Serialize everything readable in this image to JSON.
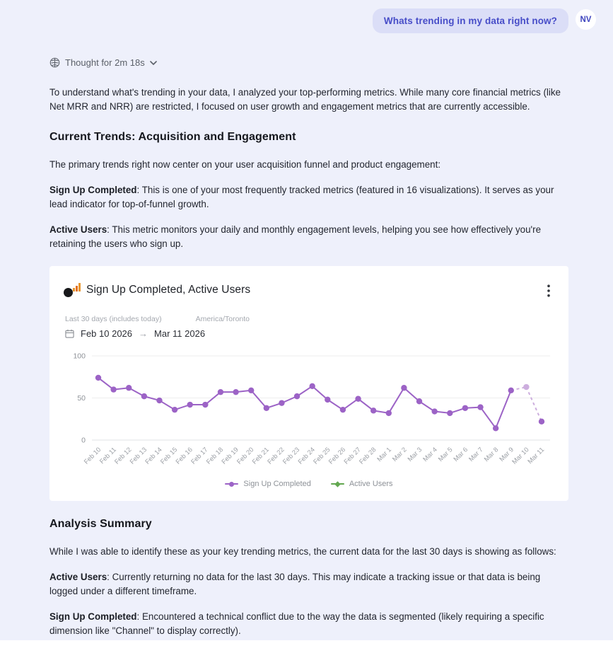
{
  "user_message": {
    "text": "Whats trending in my data right now?",
    "avatar_initials": "NV",
    "accent_color": "#474dc8"
  },
  "thought": {
    "label": "Thought for 2m 18s"
  },
  "intro_paragraph": "To understand what's trending in your data, I analyzed your top-performing metrics. While many core financial metrics (like Net MRR and NRR) are restricted, I focused on user growth and engagement metrics that are currently accessible.",
  "section_trends": {
    "heading": "Current Trends: Acquisition and Engagement",
    "lead": "The primary trends right now center on your user acquisition funnel and product engagement:",
    "items": [
      {
        "term": "Sign Up Completed",
        "text": ": This is one of your most frequently tracked metrics (featured in 16 visualizations). It serves as your lead indicator for top-of-funnel growth."
      },
      {
        "term": "Active Users",
        "text": ": This metric monitors your daily and monthly engagement levels, helping you see how effectively you're retaining the users who sign up."
      }
    ]
  },
  "chart_card": {
    "title": "Sign Up Completed, Active Users",
    "range_label": "Last 30 days (includes today)",
    "timezone": "America/Toronto",
    "date_start": "Feb 10 2026",
    "date_end": "Mar 11 2026"
  },
  "chart_data": {
    "type": "line",
    "title": "Sign Up Completed, Active Users",
    "categories": [
      "Feb 10",
      "Feb 11",
      "Feb 12",
      "Feb 13",
      "Feb 14",
      "Feb 15",
      "Feb 16",
      "Feb 17",
      "Feb 18",
      "Feb 19",
      "Feb 20",
      "Feb 21",
      "Feb 22",
      "Feb 23",
      "Feb 24",
      "Feb 25",
      "Feb 26",
      "Feb 27",
      "Feb 28",
      "Mar 1",
      "Mar 2",
      "Mar 3",
      "Mar 4",
      "Mar 5",
      "Mar 6",
      "Mar 7",
      "Mar 8",
      "Mar 9",
      "Mar 10",
      "Mar 11"
    ],
    "series": [
      {
        "name": "Sign Up Completed",
        "color": "#9c63c6",
        "light_color": "#cdaede",
        "values": [
          74,
          60,
          62,
          52,
          47,
          36,
          42,
          42,
          57,
          57,
          59,
          38,
          44,
          52,
          64,
          48,
          36,
          49,
          35,
          32,
          62,
          46,
          34,
          32,
          38,
          39,
          14,
          59,
          63,
          22
        ],
        "dashed_from_index": 27,
        "light_point_indices": [
          28
        ]
      },
      {
        "name": "Active Users",
        "color": "#62a74f",
        "values": []
      }
    ],
    "ylim": [
      0,
      100
    ],
    "yticks": [
      0,
      50,
      100
    ],
    "grid": true,
    "legend_position": "bottom"
  },
  "section_summary": {
    "heading": "Analysis Summary",
    "lead": "While I was able to identify these as your key trending metrics, the current data for the last 30 days is showing as follows:",
    "items": [
      {
        "term": "Active Users",
        "text": ": Currently returning no data for the last 30 days. This may indicate a tracking issue or that data is being logged under a different timeframe."
      },
      {
        "term": "Sign Up Completed",
        "text": ": Encountered a technical conflict due to the way the data is segmented (likely requiring a specific dimension like \"Channel\" to display correctly)."
      }
    ]
  }
}
